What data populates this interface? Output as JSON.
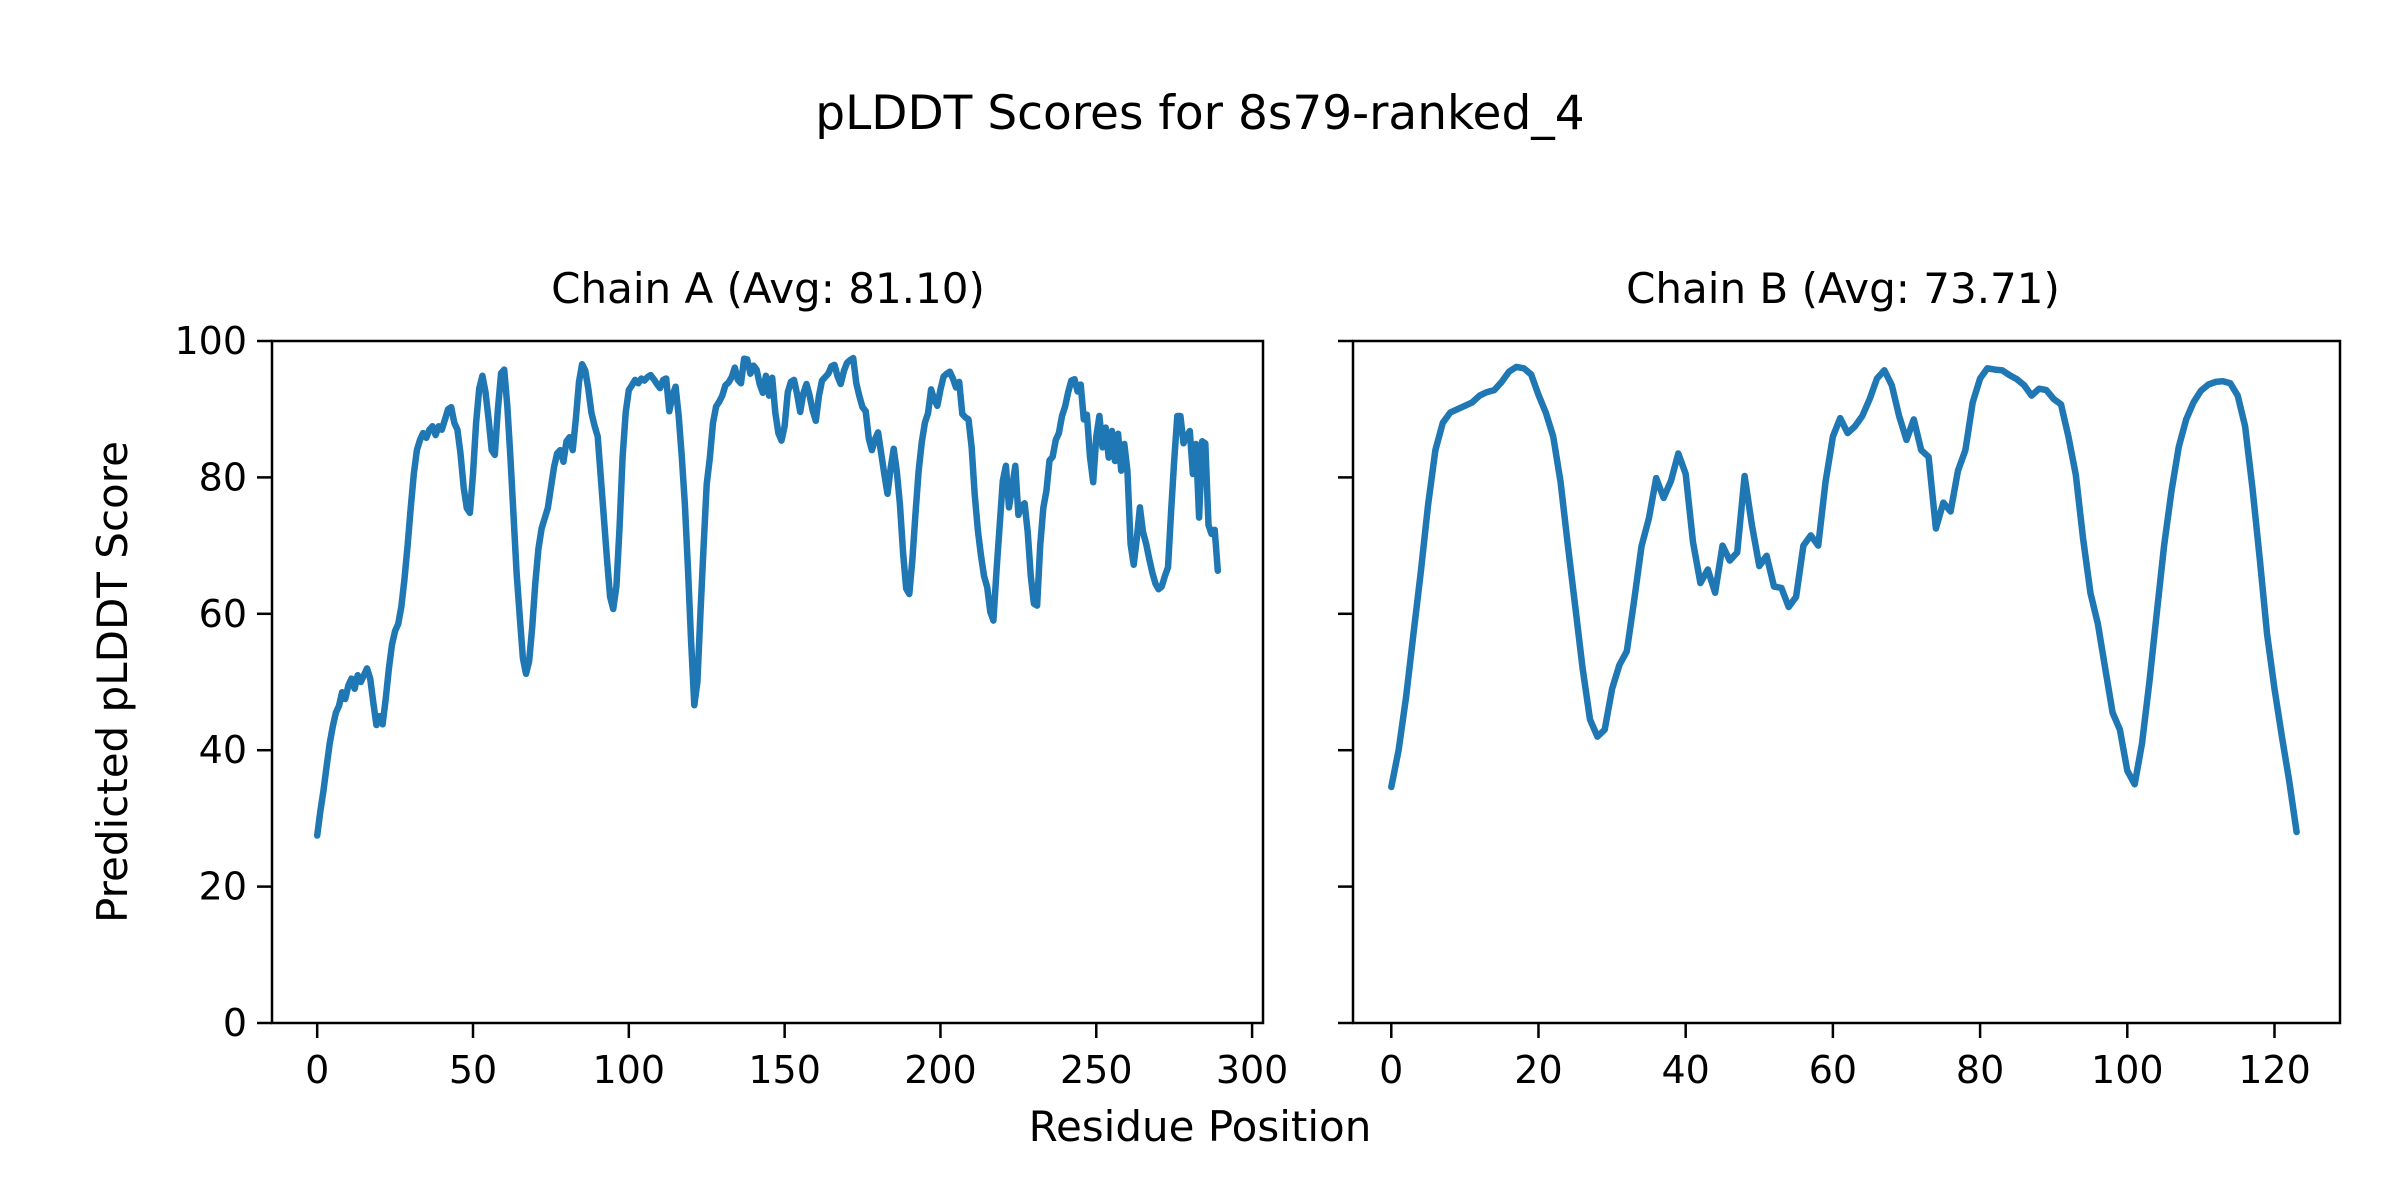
{
  "figure": {
    "suptitle": "pLDDT Scores for 8s79-ranked_4",
    "xlabel": "Residue Position",
    "ylabel": "Predicted pLDDT Score",
    "background_color": "#ffffff",
    "line_color": "#1f77b4",
    "axis_color": "#000000"
  },
  "chart_data": [
    {
      "type": "line",
      "title": "Chain A (Avg: 81.10)",
      "chain": "A",
      "average_plddt": 81.1,
      "legend": "none",
      "grid": false,
      "xlim": [
        -14.5,
        303.5
      ],
      "ylim": [
        0,
        100
      ],
      "xticks": [
        0,
        50,
        100,
        150,
        200,
        250,
        300
      ],
      "yticks": [
        0,
        20,
        40,
        60,
        80,
        100
      ],
      "ytick_labels": [
        "0",
        "20",
        "40",
        "60",
        "80",
        "100"
      ],
      "x_is_index": true,
      "values": [
        27.5,
        31,
        34,
        37.5,
        41,
        43.5,
        45.5,
        46.5,
        48.5,
        47.5,
        49.5,
        50.5,
        49,
        51,
        50,
        51,
        52,
        50.5,
        47,
        43.7,
        45,
        43.8,
        47.5,
        52,
        55.5,
        57.5,
        58.5,
        61,
        65,
        70,
        75.5,
        80.5,
        84,
        85.5,
        86.5,
        85.8,
        87,
        87.5,
        86.2,
        87.5,
        87,
        88.5,
        90,
        90.3,
        88,
        87,
        83.5,
        78.5,
        75.5,
        74.8,
        80.5,
        88,
        93,
        94.9,
        92.5,
        88.5,
        84,
        83.3,
        90,
        95.3,
        95.8,
        90.5,
        83,
        74.5,
        66,
        59.5,
        53.5,
        51.2,
        53,
        58,
        64.5,
        69.5,
        72.5,
        74,
        75.5,
        78.5,
        81.5,
        83.5,
        84,
        82.3,
        85.3,
        85.9,
        84,
        88.5,
        94,
        96.6,
        95.7,
        93,
        89.5,
        87.6,
        86,
        80,
        74,
        68,
        62.5,
        60.7,
        64,
        72.5,
        83,
        89.5,
        92.8,
        93.5,
        94.3,
        93.8,
        94.5,
        94.2,
        94.7,
        95,
        94.4,
        93.7,
        93.1,
        94.3,
        94.5,
        89.7,
        92,
        93.3,
        89,
        83,
        76,
        66.5,
        56,
        46.6,
        50,
        60.3,
        69.9,
        79,
        82.8,
        88,
        90.4,
        91.1,
        92,
        93.5,
        93.9,
        94.7,
        96.1,
        94.3,
        93.8,
        97.4,
        97.3,
        95.2,
        96.4,
        95.8,
        93.7,
        92.4,
        94.9,
        92,
        94.6,
        89.5,
        86.5,
        85.4,
        87.5,
        92.5,
        94,
        94.3,
        92.2,
        89.6,
        92.3,
        93.7,
        92,
        89.8,
        88.3,
        91.9,
        94.2,
        94.7,
        95.2,
        96.3,
        96.5,
        94.8,
        93.7,
        95.6,
        96.8,
        97.2,
        97.5,
        93.8,
        91.9,
        90.3,
        89.7,
        85.7,
        84,
        85.6,
        86.6,
        83.5,
        80.4,
        77.6,
        81.3,
        84.2,
        80.9,
        76.1,
        68.9,
        63.7,
        62.9,
        68,
        74.7,
        80.9,
        85.2,
        88,
        89.4,
        92.9,
        91.4,
        90.5,
        92.9,
        94.8,
        95.2,
        95.5,
        94.5,
        93.2,
        94,
        89.3,
        88.8,
        88.5,
        84.5,
        77.5,
        72.2,
        68.5,
        65.5,
        63.9,
        60.3,
        59,
        66.5,
        73,
        79.5,
        81.7,
        75.6,
        78.5,
        81.7,
        74.5,
        75.8,
        76.2,
        72,
        65.5,
        61.5,
        61.2,
        70,
        75.5,
        78,
        82.5,
        83,
        85.5,
        86.5,
        89,
        90.4,
        92.5,
        94.2,
        94.4,
        92.6,
        93.6,
        88.5,
        89.2,
        83,
        79.3,
        86,
        89,
        84.4,
        87.3,
        82.9,
        86.8,
        82.4,
        86.4,
        81,
        84.9,
        81,
        70.2,
        67.2,
        71,
        75.6,
        72,
        70.3,
        68,
        66,
        64.4,
        63.6,
        64,
        65.5,
        66.8,
        75,
        82.5,
        89,
        89,
        85,
        86,
        86.8,
        80.5,
        84.9,
        74.1,
        85.3,
        85,
        73,
        71.7,
        72.3,
        66.3
      ]
    },
    {
      "type": "line",
      "title": "Chain B (Avg: 73.71)",
      "chain": "B",
      "average_plddt": 73.71,
      "legend": "none",
      "grid": false,
      "xlim": [
        -5.2,
        128.9
      ],
      "ylim": [
        0,
        100
      ],
      "xticks": [
        0,
        20,
        40,
        60,
        80,
        100,
        120
      ],
      "yticks": [
        0,
        20,
        40,
        60,
        80,
        100
      ],
      "ytick_labels": [],
      "x_is_index": true,
      "values": [
        34.6,
        40,
        47.7,
        57,
        66,
        76,
        84,
        88,
        89.5,
        90,
        90.5,
        91,
        92,
        92.5,
        92.8,
        94,
        95.5,
        96.2,
        96,
        95.1,
        92.1,
        89.5,
        86,
        79.3,
        70,
        61,
        52,
        44.5,
        42,
        43,
        49,
        52.5,
        54.5,
        62,
        69.9,
        74,
        79.9,
        77,
        79.5,
        83.5,
        80.5,
        70.5,
        64.5,
        66.5,
        63.1,
        70,
        67.8,
        69,
        80.2,
        73,
        67,
        68.5,
        64,
        63.8,
        61,
        62.5,
        70,
        71.5,
        70,
        79.3,
        86,
        88.7,
        86.5,
        87.5,
        89,
        91.5,
        94.5,
        95.7,
        93.5,
        89,
        85.5,
        88.5,
        84,
        83,
        72.5,
        76.3,
        75,
        81,
        84,
        91,
        94.5,
        96,
        95.8,
        95.7,
        95,
        94.4,
        93.5,
        92,
        93,
        92.8,
        91.5,
        90.7,
        86,
        80.4,
        71,
        63,
        58.5,
        52,
        45.5,
        43,
        37,
        35,
        41,
        50,
        60,
        70,
        78,
        84.5,
        88.5,
        91,
        92.7,
        93.6,
        94,
        94.1,
        93.8,
        92,
        87.5,
        78.5,
        68,
        57,
        49,
        42,
        35.5,
        28
      ]
    }
  ]
}
